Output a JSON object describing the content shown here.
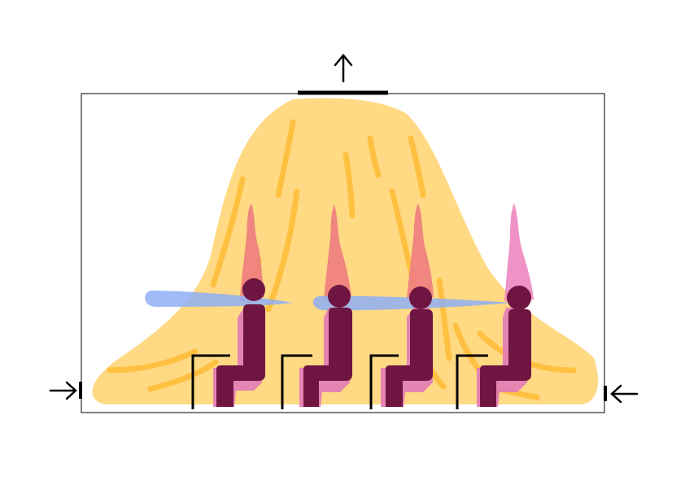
{
  "diagram": {
    "type": "room-airflow-schematic",
    "occupant_count": 4,
    "chair_count": 4,
    "supply_inlets": [
      "left-wall-low",
      "right-wall-low"
    ],
    "exhaust_outlet": "ceiling-center",
    "flow_direction_marks": [
      "exhaust-up-arrow",
      "inlet-left-arrow",
      "inlet-right-arrow"
    ],
    "colors": {
      "room_outline": "#000000",
      "air_plume": "#ffd983",
      "plume_streaks": "#ffbe3a",
      "thermal_plume_red": "#ef7f7f",
      "thermal_plume_pink": "#ee8cc3",
      "person": "#6f1542",
      "person_shadow": "#e27bb8",
      "horizontal_jet": "#8eaef5",
      "chair": "#000000"
    }
  }
}
